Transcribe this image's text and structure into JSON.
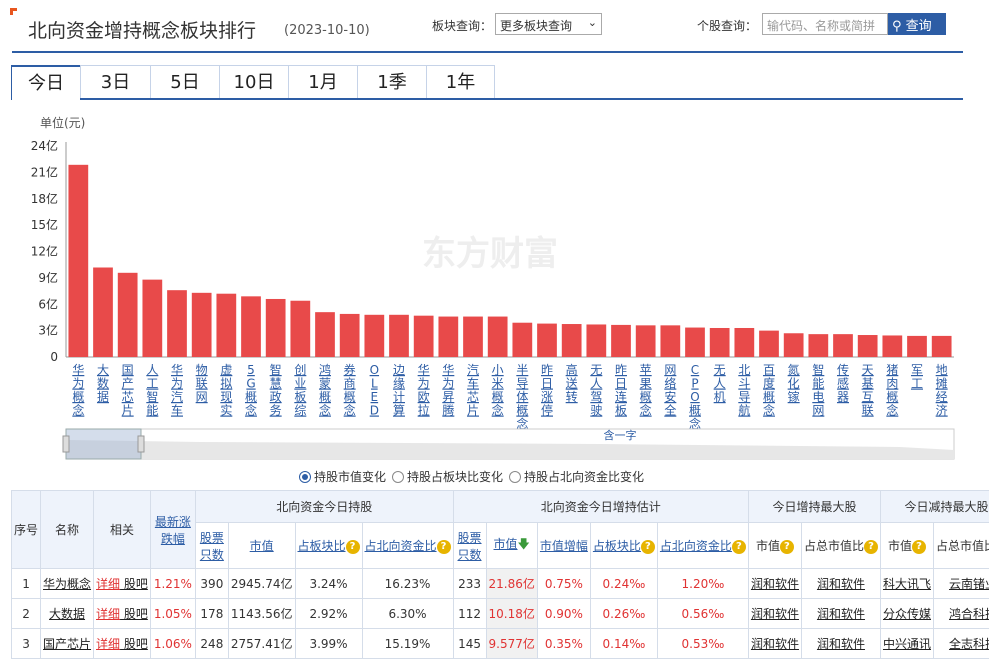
{
  "header": {
    "title": "北向资金增持概念板块排行",
    "date": "(2023-10-10)",
    "sector_label": "板块查询：",
    "sector_select": "更多板块查询",
    "stock_label": "个股查询：",
    "stock_placeholder": "输代码、名称或简拼",
    "search_button": "查询"
  },
  "tabs": [
    "今日",
    "3日",
    "5日",
    "10日",
    "1月",
    "1季",
    "1年"
  ],
  "radios": [
    "持股市值变化",
    "持股占板块比变化",
    "持股占北向资金比变化"
  ],
  "watermark": "东方财富",
  "colors": {
    "bar": "#e84a4a",
    "accent": "#2d5da5"
  },
  "chart_data": {
    "type": "bar",
    "unit_label": "单位(元)",
    "ylim": [
      0,
      24
    ],
    "yticks": [
      "0",
      "3亿",
      "6亿",
      "9亿",
      "12亿",
      "15亿",
      "18亿",
      "21亿",
      "24亿"
    ],
    "categories": [
      "华为概念",
      "大数据",
      "国产芯片",
      "人工智能",
      "华为汽车",
      "物联网",
      "虚拟现实",
      "5G概念",
      "智慧政务",
      "创业板综",
      "鸿蒙概念",
      "券商概念",
      "OLED",
      "边缘计算",
      "华为欧拉",
      "华为昇腾",
      "汽车芯片",
      "小米概念",
      "半导体概念",
      "昨日涨停",
      "高送转",
      "无人驾驶",
      "昨日连板",
      "苹果概念",
      "网络安全",
      "CPO概念",
      "无人机",
      "北斗导航",
      "百度概念",
      "氮化镓",
      "智能电网",
      "传感器",
      "天基互联",
      "猪肉概念",
      "军工",
      "地摊经济"
    ],
    "values": [
      21.86,
      10.18,
      9.577,
      8.8,
      7.6,
      7.3,
      7.2,
      6.9,
      6.6,
      6.4,
      5.1,
      4.9,
      4.8,
      4.8,
      4.7,
      4.6,
      4.6,
      4.6,
      3.9,
      3.8,
      3.75,
      3.7,
      3.65,
      3.6,
      3.6,
      3.35,
      3.3,
      3.3,
      3.0,
      2.7,
      2.6,
      2.6,
      2.5,
      2.45,
      2.4,
      2.4
    ],
    "navigator_label": "含一字"
  },
  "table": {
    "group_headers": [
      "北向资金今日持股",
      "北向资金今日增持估计",
      "今日增持最大股",
      "今日减持最大股"
    ],
    "headers": {
      "no": "序号",
      "name": "名称",
      "related": "相关",
      "change": "最新涨跌幅",
      "hold_count": "股票只数",
      "hold_value": "市值",
      "hold_sector_ratio": "占板块比",
      "hold_north_ratio": "占北向资金比",
      "add_count": "股票只数",
      "add_value": "市值",
      "add_value_change": "市值增幅",
      "add_sector_ratio": "占板块比",
      "add_north_ratio": "占北向资金比",
      "max_add_value": "市值",
      "max_add_ratio": "占总市值比",
      "max_sub_value": "市值",
      "max_sub_ratio": "占总市值比"
    },
    "rows": [
      {
        "no": "1",
        "name": "华为概念",
        "detail": "详细",
        "bar": "股吧",
        "change": "1.21%",
        "hold_count": "390",
        "hold_value": "2945.74亿",
        "hold_sector": "3.24%",
        "hold_north": "16.23%",
        "add_count": "233",
        "add_value": "21.86亿",
        "add_inc": "0.75%",
        "add_sector": "0.24‰",
        "add_north": "1.20‰",
        "max_add_v": "润和软件",
        "max_add_r": "润和软件",
        "max_sub_v": "科大讯飞",
        "max_sub_r": "云南锗业"
      },
      {
        "no": "2",
        "name": "大数据",
        "detail": "详细",
        "bar": "股吧",
        "change": "1.05%",
        "hold_count": "178",
        "hold_value": "1143.56亿",
        "hold_sector": "2.92%",
        "hold_north": "6.30%",
        "add_count": "112",
        "add_value": "10.18亿",
        "add_inc": "0.90%",
        "add_sector": "0.26‰",
        "add_north": "0.56‰",
        "max_add_v": "润和软件",
        "max_add_r": "润和软件",
        "max_sub_v": "分众传媒",
        "max_sub_r": "鸿合科技"
      },
      {
        "no": "3",
        "name": "国产芯片",
        "detail": "详细",
        "bar": "股吧",
        "change": "1.06%",
        "hold_count": "248",
        "hold_value": "2757.41亿",
        "hold_sector": "3.99%",
        "hold_north": "15.19%",
        "add_count": "145",
        "add_value": "9.577亿",
        "add_inc": "0.35%",
        "add_sector": "0.14‰",
        "add_north": "0.53‰",
        "max_add_v": "润和软件",
        "max_add_r": "润和软件",
        "max_sub_v": "中兴通讯",
        "max_sub_r": "全志科技"
      }
    ]
  }
}
